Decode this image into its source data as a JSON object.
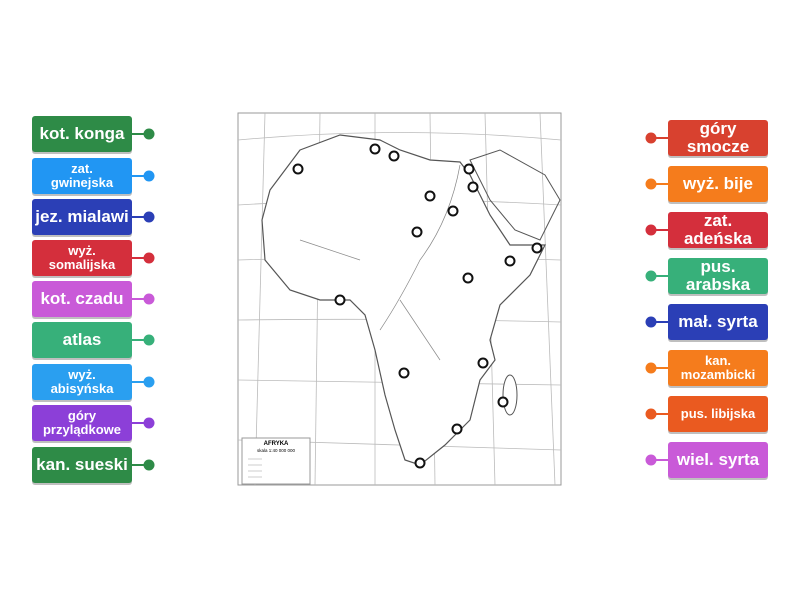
{
  "map": {
    "legend_title": "AFRYKA",
    "legend_scale": "skala 1:40 000 000"
  },
  "left_labels": [
    {
      "text": "kot. konga",
      "color": "#2e8b47"
    },
    {
      "text": "zat. gwinejska",
      "color": "#2196f3"
    },
    {
      "text": "jez. mialawi",
      "color": "#2b3fb6"
    },
    {
      "text": "wyż. somalijska",
      "color": "#d42f3c"
    },
    {
      "text": "kot. czadu",
      "color": "#c95ad8"
    },
    {
      "text": "atlas",
      "color": "#37b07a"
    },
    {
      "text": "wyż. abisyńska",
      "color": "#2a9ff0"
    },
    {
      "text": "góry przylądkowe",
      "color": "#8c3fd8"
    },
    {
      "text": "kan. sueski",
      "color": "#2e8b47"
    }
  ],
  "right_labels": [
    {
      "text": "góry smocze",
      "color": "#d8412f"
    },
    {
      "text": "wyż. bije",
      "color": "#f57c1c"
    },
    {
      "text": "zat. adeńska",
      "color": "#d42f3c"
    },
    {
      "text": "pus. arabska",
      "color": "#37b07a"
    },
    {
      "text": "mał. syrta",
      "color": "#2b3fb6"
    },
    {
      "text": "kan. mozambicki",
      "color": "#f57c1c"
    },
    {
      "text": "pus. libijska",
      "color": "#ea5a20"
    },
    {
      "text": "wiel. syrta",
      "color": "#c95ad8"
    }
  ]
}
